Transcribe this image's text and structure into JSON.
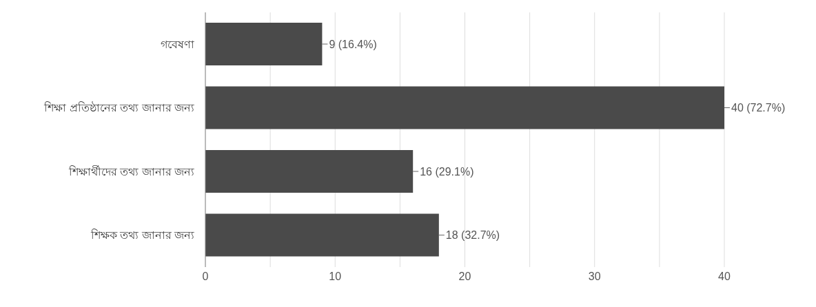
{
  "chart_data": {
    "type": "bar",
    "orientation": "horizontal",
    "categories": [
      "গবেষণা",
      "শিক্ষা প্রতিষ্ঠানের তথ্য জানার জন্য",
      "শিক্ষার্থীদের তথ্য জানার জন্য",
      "শিক্ষক তথ্য জানার জন্য"
    ],
    "values": [
      9,
      40,
      16,
      18
    ],
    "value_labels": [
      "9 (16.4%)",
      "40 (72.7%)",
      "16 (29.1%)",
      "18 (32.7%)"
    ],
    "color": "#4a4a4a",
    "xlim": [
      0,
      40
    ],
    "xticks": [
      0,
      {
        "value": 5,
        "label": null
      },
      10,
      {
        "value": 15,
        "label": null
      },
      20,
      {
        "value": 25,
        "label": null
      },
      30,
      {
        "value": 35,
        "label": null
      },
      40
    ],
    "grid": "x"
  }
}
